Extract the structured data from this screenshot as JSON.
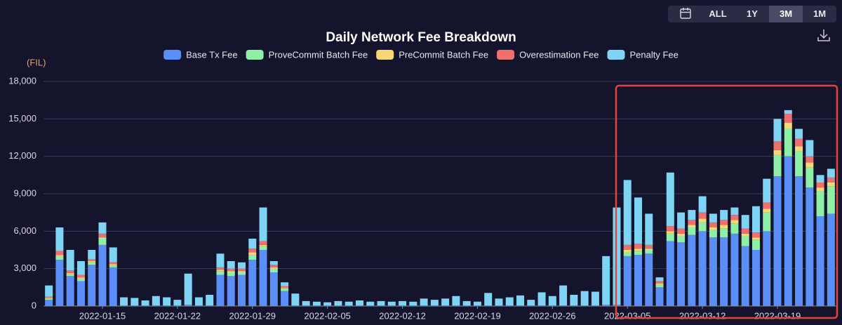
{
  "chart_data": {
    "type": "stacked_bar",
    "title": "Daily Network Fee Breakdown",
    "y_unit": "(FIL)",
    "categories": [
      null,
      null,
      null,
      null,
      null,
      "2022-01-15",
      null,
      null,
      null,
      null,
      null,
      null,
      "2022-01-22",
      null,
      null,
      null,
      null,
      null,
      null,
      "2022-01-29",
      null,
      null,
      null,
      null,
      null,
      null,
      "2022-02-05",
      null,
      null,
      null,
      null,
      null,
      null,
      "2022-02-12",
      null,
      null,
      null,
      null,
      null,
      null,
      "2022-02-19",
      null,
      null,
      null,
      null,
      null,
      null,
      "2022-02-26",
      null,
      null,
      null,
      null,
      null,
      null,
      "2022-03-05",
      null,
      null,
      null,
      null,
      null,
      null,
      "2022-03-12",
      null,
      null,
      null,
      null,
      null,
      null,
      "2022-03-19",
      null,
      null,
      null,
      null,
      null
    ],
    "series": [
      {
        "name": "Base Tx Fee",
        "color": "#5b8ef7",
        "values": [
          500,
          3700,
          2400,
          2000,
          3300,
          4900,
          3100,
          50,
          50,
          50,
          50,
          50,
          50,
          100,
          50,
          50,
          2500,
          2400,
          2500,
          3700,
          4500,
          2700,
          1200,
          50,
          50,
          50,
          50,
          50,
          50,
          50,
          50,
          50,
          50,
          50,
          50,
          50,
          50,
          50,
          50,
          50,
          50,
          50,
          50,
          50,
          50,
          50,
          50,
          50,
          50,
          50,
          50,
          50,
          100,
          100,
          4000,
          4100,
          4200,
          1500,
          5200,
          5100,
          5700,
          6000,
          5500,
          5500,
          5800,
          4800,
          4500,
          6000,
          10400,
          12000,
          10400,
          9500,
          7200,
          7400
        ]
      },
      {
        "name": "ProveCommit Batch Fee",
        "color": "#8ef0a6",
        "values": [
          100,
          300,
          150,
          200,
          200,
          500,
          150,
          0,
          0,
          0,
          0,
          0,
          0,
          0,
          0,
          0,
          300,
          300,
          200,
          400,
          300,
          300,
          200,
          0,
          0,
          0,
          0,
          0,
          0,
          0,
          0,
          0,
          0,
          0,
          0,
          0,
          0,
          0,
          0,
          0,
          0,
          0,
          0,
          0,
          0,
          0,
          0,
          0,
          0,
          0,
          0,
          0,
          0,
          0,
          300,
          300,
          300,
          200,
          600,
          500,
          600,
          700,
          600,
          700,
          800,
          800,
          800,
          1500,
          1700,
          2200,
          2000,
          1600,
          2000,
          2200
        ]
      },
      {
        "name": "PreCommit Batch Fee",
        "color": "#f7d877",
        "values": [
          50,
          100,
          100,
          100,
          100,
          100,
          100,
          0,
          0,
          0,
          0,
          0,
          0,
          0,
          0,
          0,
          100,
          100,
          100,
          200,
          100,
          100,
          50,
          0,
          0,
          0,
          0,
          0,
          0,
          0,
          0,
          0,
          0,
          0,
          0,
          0,
          0,
          0,
          0,
          0,
          0,
          0,
          0,
          0,
          0,
          0,
          0,
          0,
          0,
          0,
          0,
          0,
          0,
          0,
          200,
          200,
          100,
          100,
          200,
          200,
          200,
          300,
          200,
          300,
          300,
          200,
          200,
          300,
          400,
          500,
          400,
          400,
          300,
          300
        ]
      },
      {
        "name": "Overestimation Fee",
        "color": "#ef6f6c",
        "values": [
          100,
          300,
          200,
          200,
          150,
          300,
          150,
          0,
          0,
          0,
          0,
          0,
          0,
          0,
          0,
          0,
          200,
          200,
          200,
          300,
          300,
          200,
          150,
          0,
          0,
          0,
          0,
          0,
          0,
          0,
          0,
          0,
          0,
          0,
          0,
          0,
          0,
          0,
          0,
          0,
          0,
          0,
          0,
          0,
          0,
          0,
          0,
          0,
          0,
          0,
          0,
          0,
          0,
          0,
          400,
          400,
          300,
          200,
          400,
          400,
          400,
          500,
          400,
          400,
          400,
          400,
          400,
          500,
          700,
          700,
          600,
          500,
          400,
          400
        ]
      },
      {
        "name": "Penalty Fee",
        "color": "#7fd3f4",
        "values": [
          900,
          1900,
          1650,
          1100,
          750,
          900,
          1200,
          650,
          600,
          400,
          750,
          650,
          450,
          2500,
          650,
          850,
          1100,
          600,
          500,
          800,
          2700,
          300,
          300,
          950,
          350,
          300,
          250,
          350,
          300,
          400,
          300,
          350,
          300,
          350,
          300,
          550,
          450,
          550,
          750,
          350,
          300,
          1000,
          550,
          650,
          800,
          450,
          1050,
          750,
          1600,
          850,
          1150,
          1100,
          3900,
          7800,
          5200,
          3700,
          2500,
          300,
          4300,
          1300,
          800,
          1300,
          700,
          800,
          600,
          1100,
          2100,
          1900,
          1800,
          300,
          800,
          1300,
          600,
          700
        ]
      }
    ],
    "ylim": [
      0,
      18000
    ],
    "yticks": [
      0,
      {
        "value": 3000,
        "label": "3,000"
      },
      {
        "value": 6000,
        "label": "6,000"
      },
      {
        "value": 9000,
        "label": "9,000"
      },
      {
        "value": 12000,
        "label": "12,000"
      },
      {
        "value": 15000,
        "label": "15,000"
      },
      {
        "value": 18000,
        "label": "18,000"
      }
    ],
    "grid": true
  },
  "range_buttons": [
    "ALL",
    "1Y",
    "3M",
    "1M"
  ],
  "selected_range": "3M"
}
